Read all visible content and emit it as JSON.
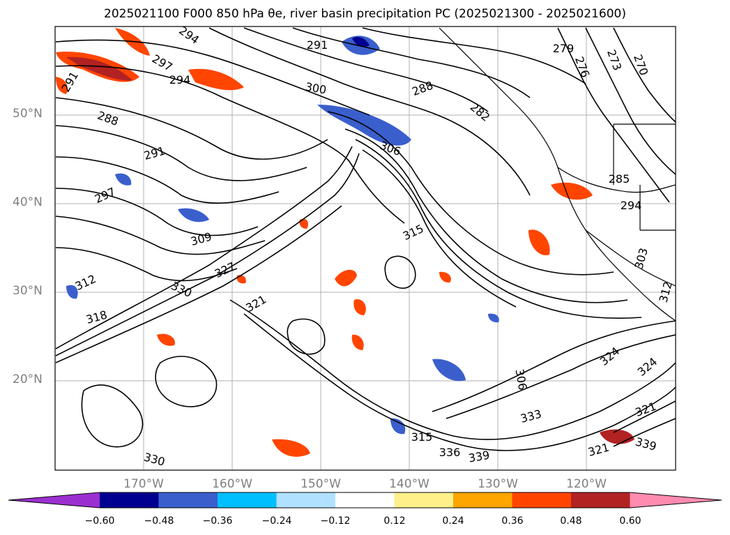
{
  "title": "2025021100 F000 850 hPa θe, river basin precipitation PC (2025021300 - 2025021600)",
  "map": {
    "lon_range": [
      -180,
      -110
    ],
    "lat_range": [
      10,
      60
    ],
    "lat_ticks": [
      {
        "label": "50°N",
        "lat": 50
      },
      {
        "label": "40°N",
        "lat": 40
      },
      {
        "label": "30°N",
        "lat": 30
      },
      {
        "label": "20°N",
        "lat": 20
      }
    ],
    "lon_ticks": [
      {
        "label": "170°W",
        "lon": -170
      },
      {
        "label": "160°W",
        "lon": -160
      },
      {
        "label": "150°W",
        "lon": -150
      },
      {
        "label": "140°W",
        "lon": -140
      },
      {
        "label": "130°W",
        "lon": -130
      },
      {
        "label": "120°W",
        "lon": -120
      }
    ],
    "contour_labels": [
      "294",
      "291",
      "297",
      "291",
      "294",
      "300",
      "288",
      "282",
      "279",
      "276",
      "273",
      "270",
      "288",
      "291",
      "306",
      "285",
      "297",
      "294",
      "309",
      "315",
      "303",
      "327",
      "312",
      "330",
      "318",
      "312",
      "321",
      "306",
      "324",
      "324",
      "333",
      "315",
      "321",
      "336",
      "339",
      "330",
      "321",
      "339"
    ]
  },
  "colorbar": {
    "colors": [
      "#9b30d0",
      "#000090",
      "#3a5fcd",
      "#00bfff",
      "#b0e2ff",
      "#ffffff",
      "#fff08a",
      "#ffa500",
      "#ff4500",
      "#b22222",
      "#ff8cb0"
    ],
    "extend_min_color": "#9b30d0",
    "extend_max_color": "#ff8cb0",
    "tick_labels": [
      "−0.60",
      "−0.48",
      "−0.36",
      "−0.24",
      "−0.12",
      "0.12",
      "0.24",
      "0.36",
      "0.48",
      "0.60"
    ]
  }
}
